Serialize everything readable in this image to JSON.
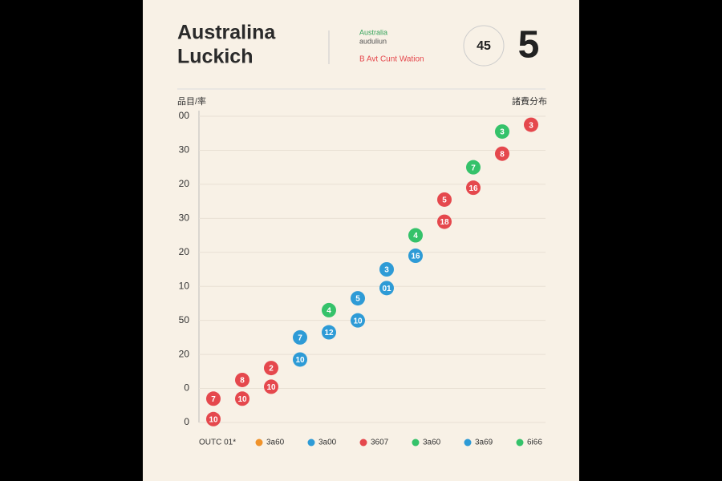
{
  "chart_data": {
    "type": "scatter",
    "title_lines": [
      "Australina",
      "Luckich"
    ],
    "subtitle_lines": [
      "Australia",
      "auduliun"
    ],
    "note": "B Avt Cunt Wation",
    "badge": "45",
    "big_number": "5",
    "y_axis_label": "品目/率",
    "y2_axis_label": "諸費分布",
    "xlim": [
      0.5,
      12.5
    ],
    "ylim": [
      0,
      9
    ],
    "yticks": [
      0,
      {
        "value": 1,
        "label": "0"
      },
      {
        "value": 2,
        "label": "20"
      },
      {
        "value": 3,
        "label": "50"
      },
      {
        "value": 4,
        "label": "10"
      },
      {
        "value": 5,
        "label": "20"
      },
      {
        "value": 6,
        "label": "30"
      },
      {
        "value": 7,
        "label": "20"
      },
      {
        "value": 8,
        "label": "30"
      },
      {
        "value": 9,
        "label": "00"
      }
    ],
    "grid": true,
    "series": [
      {
        "color": "#e5484d",
        "x": [
          1,
          1,
          2,
          2,
          3,
          3,
          9,
          9,
          10,
          11,
          12
        ],
        "values": [
          0.7,
          0.1,
          1.25,
          0.7,
          1.6,
          1.05,
          6.55,
          5.9,
          6.9,
          7.9,
          8.75
        ],
        "labels": [
          "7",
          "10",
          "8",
          "10",
          "2",
          "10",
          "5",
          "18",
          "16",
          "8",
          "3"
        ]
      },
      {
        "color": "#2e9bd6",
        "x": [
          4,
          4,
          5,
          6,
          6,
          7,
          7,
          8
        ],
        "values": [
          2.5,
          1.85,
          2.65,
          3.65,
          3.0,
          4.5,
          3.95,
          4.9
        ],
        "labels": [
          "7",
          "10",
          "12",
          "5",
          "10",
          "3",
          "01",
          "16"
        ]
      },
      {
        "color": "#35c26a",
        "x": [
          5,
          8,
          10,
          11
        ],
        "values": [
          3.3,
          5.5,
          7.5,
          8.55
        ],
        "labels": [
          "4",
          "4",
          "7",
          "3"
        ]
      }
    ],
    "legend_title": "OUTC 01*",
    "legend": [
      {
        "name": "3a60",
        "color": "#f0932b"
      },
      {
        "name": "3a00",
        "color": "#2e9bd6"
      },
      {
        "name": "3607",
        "color": "#e5484d"
      },
      {
        "name": "3a60",
        "color": "#35c26a"
      },
      {
        "name": "3a69",
        "color": "#2e9bd6"
      },
      {
        "name": "6i66",
        "color": "#35c26a"
      }
    ]
  }
}
